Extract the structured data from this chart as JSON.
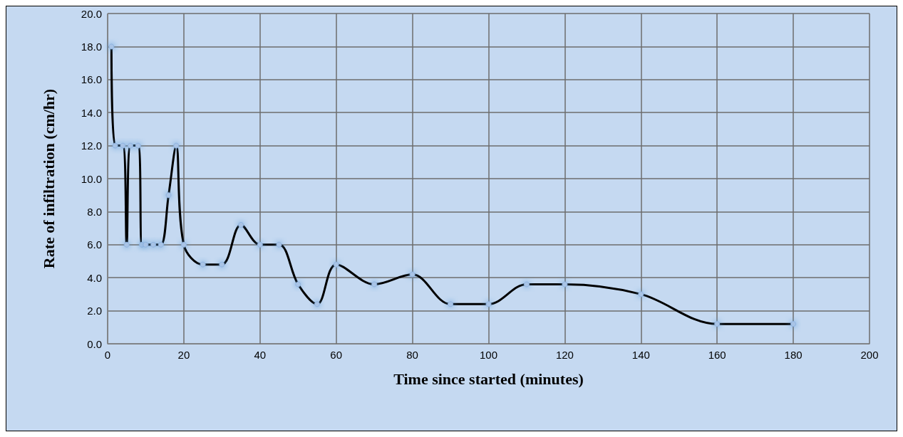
{
  "chart_data": {
    "type": "line",
    "xlabel": "Time since started (minutes)",
    "ylabel": "Rate of infiltration (cm/hr)",
    "xlim": [
      0,
      200
    ],
    "xticks": [
      0,
      20,
      40,
      60,
      80,
      100,
      120,
      140,
      160,
      180,
      200
    ],
    "ylim": [
      0,
      20
    ],
    "yticks": [
      {
        "value": 0,
        "label": "0.0"
      },
      {
        "value": 2,
        "label": "2.0"
      },
      {
        "value": 4,
        "label": "4.0"
      },
      {
        "value": 6,
        "label": "6.0"
      },
      {
        "value": 8,
        "label": "8.0"
      },
      {
        "value": 10,
        "label": "10.0"
      },
      {
        "value": 12,
        "label": "12.0"
      },
      {
        "value": 14,
        "label": "14.0"
      },
      {
        "value": 16,
        "label": "16.0"
      },
      {
        "value": 18,
        "label": "18.0"
      },
      {
        "value": 20,
        "label": "20.0"
      }
    ],
    "grid": true,
    "marker": "circle",
    "line_style": "solid",
    "x": [
      1,
      2,
      4,
      5,
      6,
      8,
      9,
      10,
      12,
      14,
      16,
      18,
      20,
      25,
      30,
      35,
      40,
      45,
      50,
      55,
      60,
      70,
      80,
      90,
      100,
      110,
      120,
      140,
      160,
      180
    ],
    "series": [
      {
        "color": "#000000",
        "values": [
          18,
          12,
          12,
          6,
          12,
          12,
          6,
          6,
          6,
          6,
          9,
          12,
          6,
          4.8,
          4.8,
          7.2,
          6,
          6,
          3.6,
          2.4,
          4.8,
          3.6,
          4.2,
          2.4,
          2.4,
          3.6,
          3.6,
          3.0,
          1.2,
          1.2
        ]
      }
    ]
  }
}
